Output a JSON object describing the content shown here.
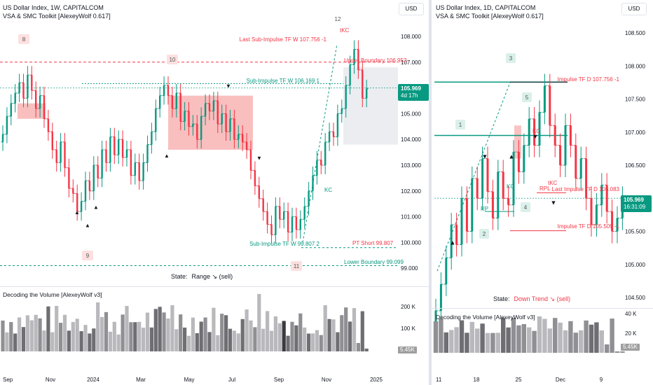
{
  "left": {
    "title": "US Dollar Index, 1W, CAPITALCOM",
    "indicator": "VSA & SMC Toolkit [AlexeyWolf 0.617]",
    "currency": "USD",
    "price_label": "105.969",
    "countdown": "4d 17h",
    "axis_ticks": [
      "108.000",
      "107.000",
      "106.000",
      "105.000",
      "104.000",
      "103.000",
      "102.000",
      "101.000",
      "100.000",
      "99.000"
    ],
    "tick_values": [
      108,
      107,
      106,
      105,
      104,
      103,
      102,
      101,
      100,
      99
    ],
    "time_labels": [
      "Sep",
      "Nov",
      "2024",
      "Mar",
      "May",
      "Jul",
      "Sep",
      "Nov",
      "2025"
    ],
    "annotations": {
      "last_sub_impulse": "Last Sub-Impulse TF W 107.756 -1",
      "upper_boundary": "Upper Boundary 106.952",
      "sub_impulse_high": "Sub-Impulse TF W 106.169 1",
      "sub_impulse_low": "Sub-Impulse TF W 99.807 2",
      "pt_short": "PT Short 99.807",
      "lower_boundary": "Lower Boundary 99.099",
      "tkc": "tKC",
      "kc": "KC",
      "n8": "8",
      "n9": "9",
      "n10": "10",
      "n11": "11",
      "n12": "12"
    },
    "state_label": "State:",
    "state_value": "Range ↘ (sell)",
    "volume_title": "Decoding the Volume [AlexeyWolf v3]",
    "volume_ticks": [
      "200 K",
      "100 K"
    ],
    "volume_current": "5.45K",
    "colors": {
      "up": "#089981",
      "down": "#f23645"
    }
  },
  "right": {
    "title": "US Dollar Index, 1D, CAPITALCOM",
    "indicator": "VSA & SMC Toolkit [AlexeyWolf 0.617]",
    "currency": "USD",
    "price_label": "105.969",
    "countdown": "16:31:09",
    "axis_ticks": [
      "108.500",
      "108.000",
      "107.500",
      "107.000",
      "106.500",
      "106.000",
      "105.500",
      "105.000",
      "104.500"
    ],
    "tick_values": [
      108.5,
      108,
      107.5,
      107,
      106.5,
      106,
      105.5,
      105,
      104.5
    ],
    "time_labels": [
      "11",
      "18",
      "25",
      "Dec",
      "9"
    ],
    "annotations": {
      "impulse_high": "Impulse TF D 107.756 -1",
      "last_impulse": "Last Impulse TF D 106.083",
      "impulse_low": "Impulse TF D 105.509 -1",
      "tkc": "tKC",
      "kc": "KC",
      "kc2": "KC",
      "rpl": "RPL",
      "rp": "RP",
      "n1": "1",
      "n2": "2",
      "n3": "3",
      "n4": "4",
      "n5": "5"
    },
    "state_label": "State:",
    "state_value": "Down Trend ↘ (sell)",
    "volume_title": "Decoding the Volume [AlexeyWolf v3]",
    "volume_ticks": [
      "40 K",
      "20 K"
    ],
    "volume_current": "5.45K",
    "colors": {
      "up": "#089981",
      "down": "#f23645"
    }
  }
}
